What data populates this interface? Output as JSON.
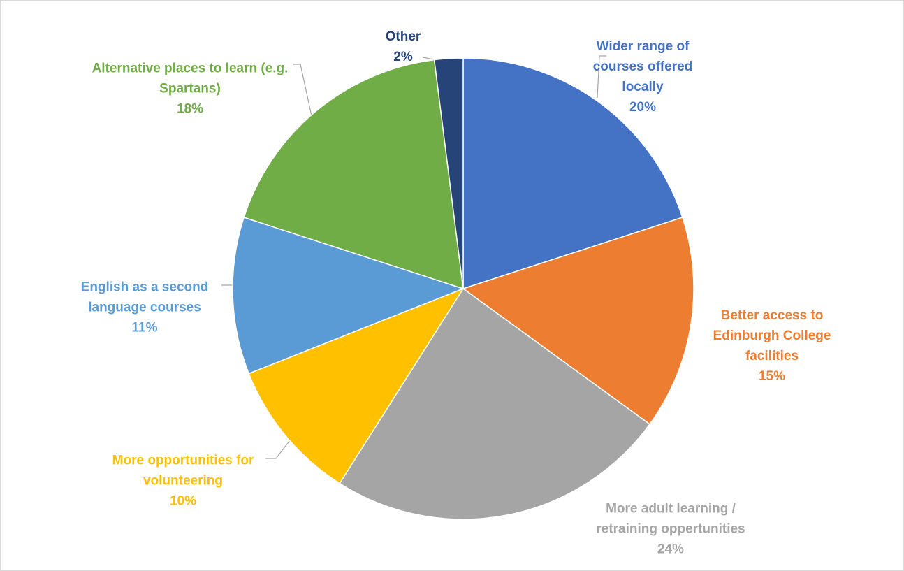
{
  "chart_data": {
    "type": "pie",
    "categories": [
      "Wider range of courses offered locally",
      "Better access to Edinburgh College facilities",
      "More adult learning / retraining oppertunities",
      "More opportunities for volunteering",
      "English as a second language courses",
      "Alternative places to learn (e.g. Spartans)",
      "Other"
    ],
    "values": [
      20,
      15,
      24,
      10,
      11,
      18,
      2
    ],
    "value_labels": [
      "20%",
      "15%",
      "24%",
      "10%",
      "11%",
      "18%",
      "2%"
    ],
    "colors": [
      "#4472c4",
      "#ed7d31",
      "#a5a5a5",
      "#ffc000",
      "#5b9bd5",
      "#70ad47",
      "#264478"
    ]
  }
}
